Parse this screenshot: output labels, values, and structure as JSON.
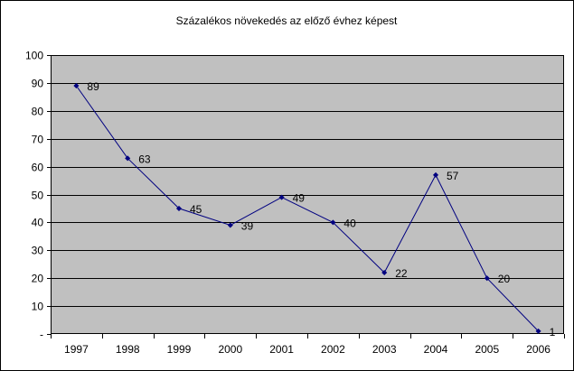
{
  "chart_data": {
    "type": "line",
    "title": "Százalékos növekedés az előző évhez képest",
    "categories": [
      "1997",
      "1998",
      "1999",
      "2000",
      "2001",
      "2002",
      "2003",
      "2004",
      "2005",
      "2006"
    ],
    "series": [
      {
        "values": [
          89,
          63,
          45,
          39,
          49,
          40,
          22,
          57,
          20,
          1
        ],
        "data_labels": [
          "89",
          "63",
          "45",
          "39",
          "49",
          "40",
          "22",
          "57",
          "20",
          "1"
        ]
      }
    ],
    "y_ticks": [
      "-",
      "10",
      "20",
      "30",
      "40",
      "50",
      "60",
      "70",
      "80",
      "90",
      "100"
    ],
    "ylim": [
      0,
      100
    ],
    "grid": true,
    "legend": "none",
    "colors": {
      "plot_background": "#c0c0c0",
      "line": "#000080",
      "marker": "#000080",
      "gridline": "#000000",
      "frame": "#000000"
    }
  }
}
